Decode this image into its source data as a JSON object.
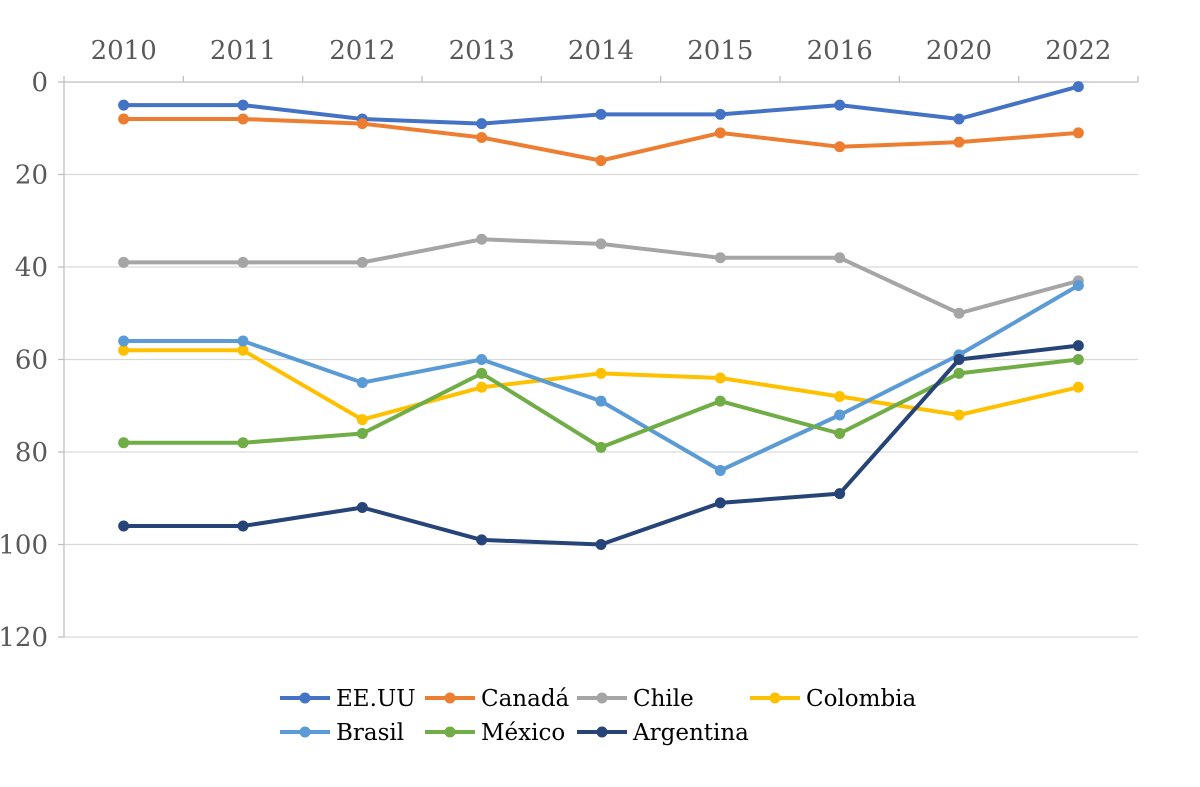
{
  "chart_data": {
    "type": "line",
    "title": "",
    "xlabel": "",
    "ylabel": "",
    "categories": [
      "2010",
      "2011",
      "2012",
      "2013",
      "2014",
      "2015",
      "2016",
      "2020",
      "2022"
    ],
    "ylim": [
      0,
      120
    ],
    "y_reversed": true,
    "y_ticks": [
      0,
      20,
      40,
      60,
      80,
      100,
      120
    ],
    "x_axis_position": "top",
    "grid": true,
    "legend_position": "bottom",
    "series": [
      {
        "name": "EE.UU",
        "color": "#4472c4",
        "values": [
          5,
          5,
          8,
          9,
          7,
          7,
          5,
          8,
          1
        ]
      },
      {
        "name": "Canadá",
        "color": "#ed7d31",
        "values": [
          8,
          8,
          9,
          12,
          17,
          11,
          14,
          13,
          11
        ]
      },
      {
        "name": "Chile",
        "color": "#a5a5a5",
        "values": [
          39,
          39,
          39,
          34,
          35,
          38,
          38,
          50,
          43
        ]
      },
      {
        "name": "Colombia",
        "color": "#ffc000",
        "values": [
          58,
          58,
          73,
          66,
          63,
          64,
          68,
          72,
          66
        ]
      },
      {
        "name": "Brasil",
        "color": "#5b9bd5",
        "values": [
          56,
          56,
          65,
          60,
          69,
          84,
          72,
          59,
          44
        ]
      },
      {
        "name": "México",
        "color": "#70ad47",
        "values": [
          78,
          78,
          76,
          63,
          79,
          69,
          76,
          63,
          60
        ]
      },
      {
        "name": "Argentina",
        "color": "#264478",
        "values": [
          96,
          96,
          92,
          99,
          100,
          91,
          89,
          60,
          57
        ]
      }
    ]
  }
}
